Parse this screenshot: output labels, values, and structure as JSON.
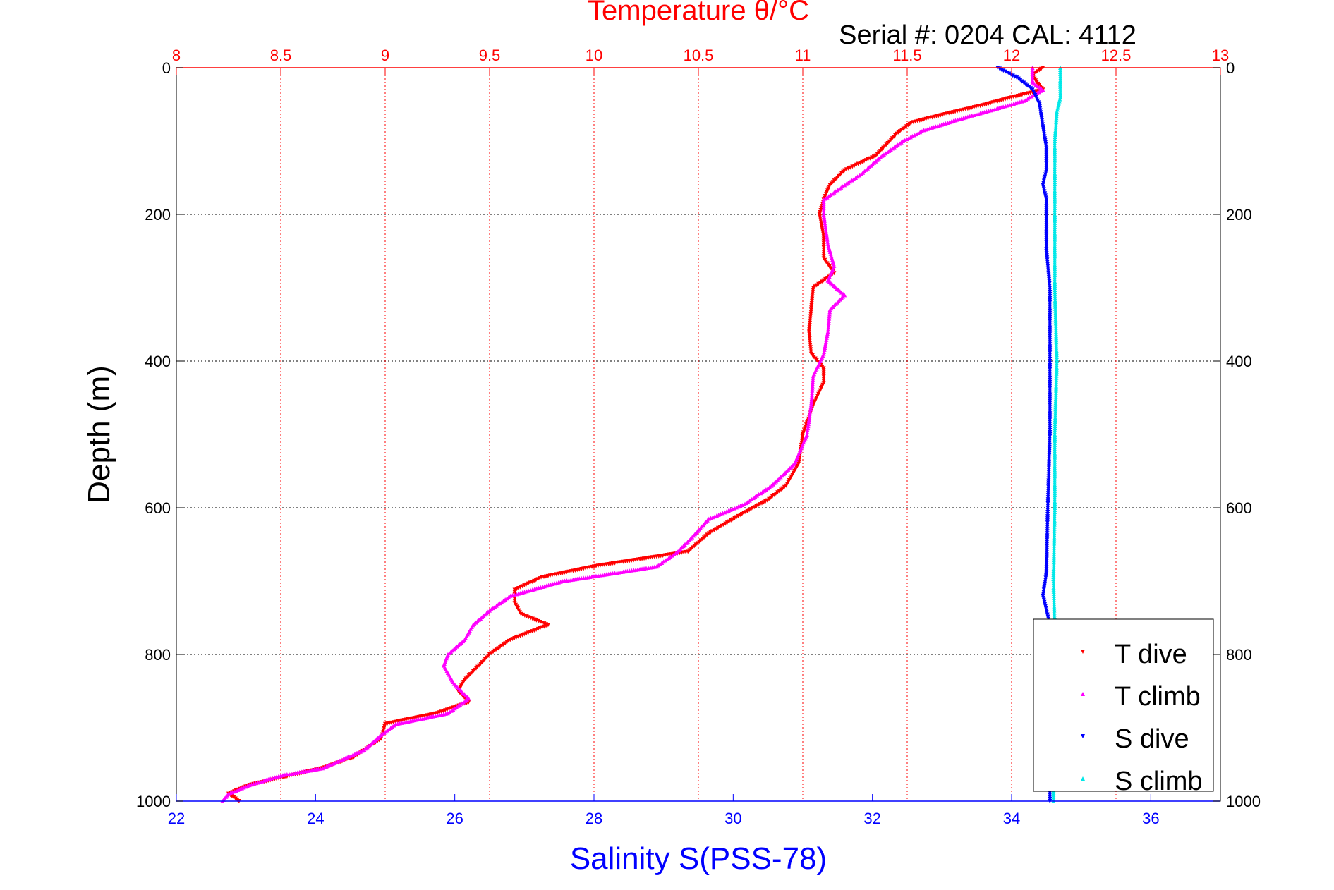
{
  "chart_data": {
    "type": "scatter",
    "title": "Temperature θ/°C",
    "subtitle": "Serial #: 0204  CAL: 4112",
    "xlabel": "Salinity S(PSS-78)",
    "ylabel": "Depth (m)",
    "x_bottom": {
      "label": "Salinity S(PSS-78)",
      "range": [
        22,
        37
      ],
      "ticks": [
        22,
        24,
        26,
        28,
        30,
        32,
        34,
        36
      ],
      "color": "#0000ff"
    },
    "x_top": {
      "label": "Temperature θ/°C",
      "range": [
        8,
        13
      ],
      "ticks": [
        8,
        8.5,
        9,
        9.5,
        10,
        10.5,
        11,
        11.5,
        12,
        12.5,
        13
      ],
      "color": "#ff0000"
    },
    "y": {
      "range": [
        0,
        1000
      ],
      "reversed": true,
      "ticks": [
        0,
        200,
        400,
        600,
        800,
        1000
      ]
    },
    "grid": {
      "horizontal": true,
      "vertical_top_axis": true
    },
    "legend_position": "bottom-right",
    "series": [
      {
        "name": "T dive",
        "axis": "top",
        "color": "#ff0000",
        "marker": "triangle-down",
        "points": [
          [
            12.15,
            0
          ],
          [
            12.1,
            10
          ],
          [
            12.12,
            20
          ],
          [
            12.15,
            30
          ],
          [
            11.98,
            42
          ],
          [
            11.85,
            52
          ],
          [
            11.7,
            62
          ],
          [
            11.52,
            75
          ],
          [
            11.45,
            90
          ],
          [
            11.4,
            105
          ],
          [
            11.35,
            120
          ],
          [
            11.2,
            140
          ],
          [
            11.13,
            160
          ],
          [
            11.1,
            180
          ],
          [
            11.08,
            200
          ],
          [
            11.1,
            230
          ],
          [
            11.1,
            260
          ],
          [
            11.15,
            280
          ],
          [
            11.05,
            300
          ],
          [
            11.04,
            330
          ],
          [
            11.03,
            360
          ],
          [
            11.04,
            390
          ],
          [
            11.1,
            410
          ],
          [
            11.1,
            430
          ],
          [
            11.05,
            460
          ],
          [
            11.0,
            500
          ],
          [
            10.98,
            540
          ],
          [
            10.92,
            570
          ],
          [
            10.83,
            590
          ],
          [
            10.7,
            610
          ],
          [
            10.55,
            635
          ],
          [
            10.45,
            660
          ],
          [
            10.0,
            680
          ],
          [
            9.75,
            695
          ],
          [
            9.62,
            712
          ],
          [
            9.62,
            730
          ],
          [
            9.65,
            745
          ],
          [
            9.78,
            760
          ],
          [
            9.6,
            780
          ],
          [
            9.5,
            800
          ],
          [
            9.45,
            815
          ],
          [
            9.38,
            835
          ],
          [
            9.35,
            850
          ],
          [
            9.4,
            865
          ],
          [
            9.25,
            880
          ],
          [
            9.0,
            895
          ],
          [
            8.98,
            915
          ],
          [
            8.85,
            940
          ],
          [
            8.7,
            955
          ],
          [
            8.55,
            965
          ],
          [
            8.35,
            978
          ],
          [
            8.25,
            990
          ],
          [
            8.3,
            1000
          ]
        ]
      },
      {
        "name": "T climb",
        "axis": "top",
        "color": "#ff00ff",
        "marker": "triangle-up",
        "points": [
          [
            12.1,
            0
          ],
          [
            12.1,
            20
          ],
          [
            12.15,
            30
          ],
          [
            12.06,
            45
          ],
          [
            11.9,
            58
          ],
          [
            11.75,
            70
          ],
          [
            11.58,
            85
          ],
          [
            11.48,
            100
          ],
          [
            11.38,
            120
          ],
          [
            11.28,
            145
          ],
          [
            11.2,
            160
          ],
          [
            11.1,
            180
          ],
          [
            11.1,
            200
          ],
          [
            11.12,
            240
          ],
          [
            11.15,
            270
          ],
          [
            11.12,
            290
          ],
          [
            11.2,
            310
          ],
          [
            11.13,
            330
          ],
          [
            11.12,
            360
          ],
          [
            11.1,
            390
          ],
          [
            11.05,
            420
          ],
          [
            11.04,
            460
          ],
          [
            11.02,
            500
          ],
          [
            10.96,
            540
          ],
          [
            10.85,
            570
          ],
          [
            10.72,
            595
          ],
          [
            10.55,
            615
          ],
          [
            10.47,
            640
          ],
          [
            10.4,
            660
          ],
          [
            10.3,
            680
          ],
          [
            9.85,
            700
          ],
          [
            9.6,
            720
          ],
          [
            9.5,
            740
          ],
          [
            9.42,
            760
          ],
          [
            9.38,
            780
          ],
          [
            9.3,
            800
          ],
          [
            9.28,
            815
          ],
          [
            9.33,
            840
          ],
          [
            9.4,
            860
          ],
          [
            9.3,
            880
          ],
          [
            9.05,
            895
          ],
          [
            8.98,
            910
          ],
          [
            8.9,
            930
          ],
          [
            8.7,
            955
          ],
          [
            8.5,
            965
          ],
          [
            8.35,
            978
          ],
          [
            8.25,
            990
          ],
          [
            8.22,
            1000
          ]
        ]
      },
      {
        "name": "S dive",
        "axis": "bottom",
        "color": "#0000ff",
        "marker": "triangle-down",
        "points": [
          [
            33.8,
            0
          ],
          [
            34.1,
            15
          ],
          [
            34.3,
            30
          ],
          [
            34.4,
            50
          ],
          [
            34.45,
            80
          ],
          [
            34.5,
            110
          ],
          [
            34.5,
            140
          ],
          [
            34.45,
            160
          ],
          [
            34.5,
            180
          ],
          [
            34.5,
            250
          ],
          [
            34.55,
            300
          ],
          [
            34.55,
            400
          ],
          [
            34.55,
            500
          ],
          [
            34.52,
            600
          ],
          [
            34.5,
            690
          ],
          [
            34.45,
            720
          ],
          [
            34.55,
            760
          ],
          [
            34.55,
            850
          ],
          [
            34.55,
            1000
          ]
        ]
      },
      {
        "name": "S climb",
        "axis": "bottom",
        "color": "#00e8e8",
        "marker": "triangle-up",
        "points": [
          [
            34.7,
            0
          ],
          [
            34.7,
            20
          ],
          [
            34.7,
            40
          ],
          [
            34.65,
            60
          ],
          [
            34.62,
            100
          ],
          [
            34.62,
            150
          ],
          [
            34.62,
            200
          ],
          [
            34.62,
            300
          ],
          [
            34.65,
            400
          ],
          [
            34.62,
            500
          ],
          [
            34.62,
            600
          ],
          [
            34.6,
            700
          ],
          [
            34.62,
            760
          ],
          [
            34.62,
            850
          ],
          [
            34.6,
            1000
          ]
        ]
      }
    ]
  }
}
